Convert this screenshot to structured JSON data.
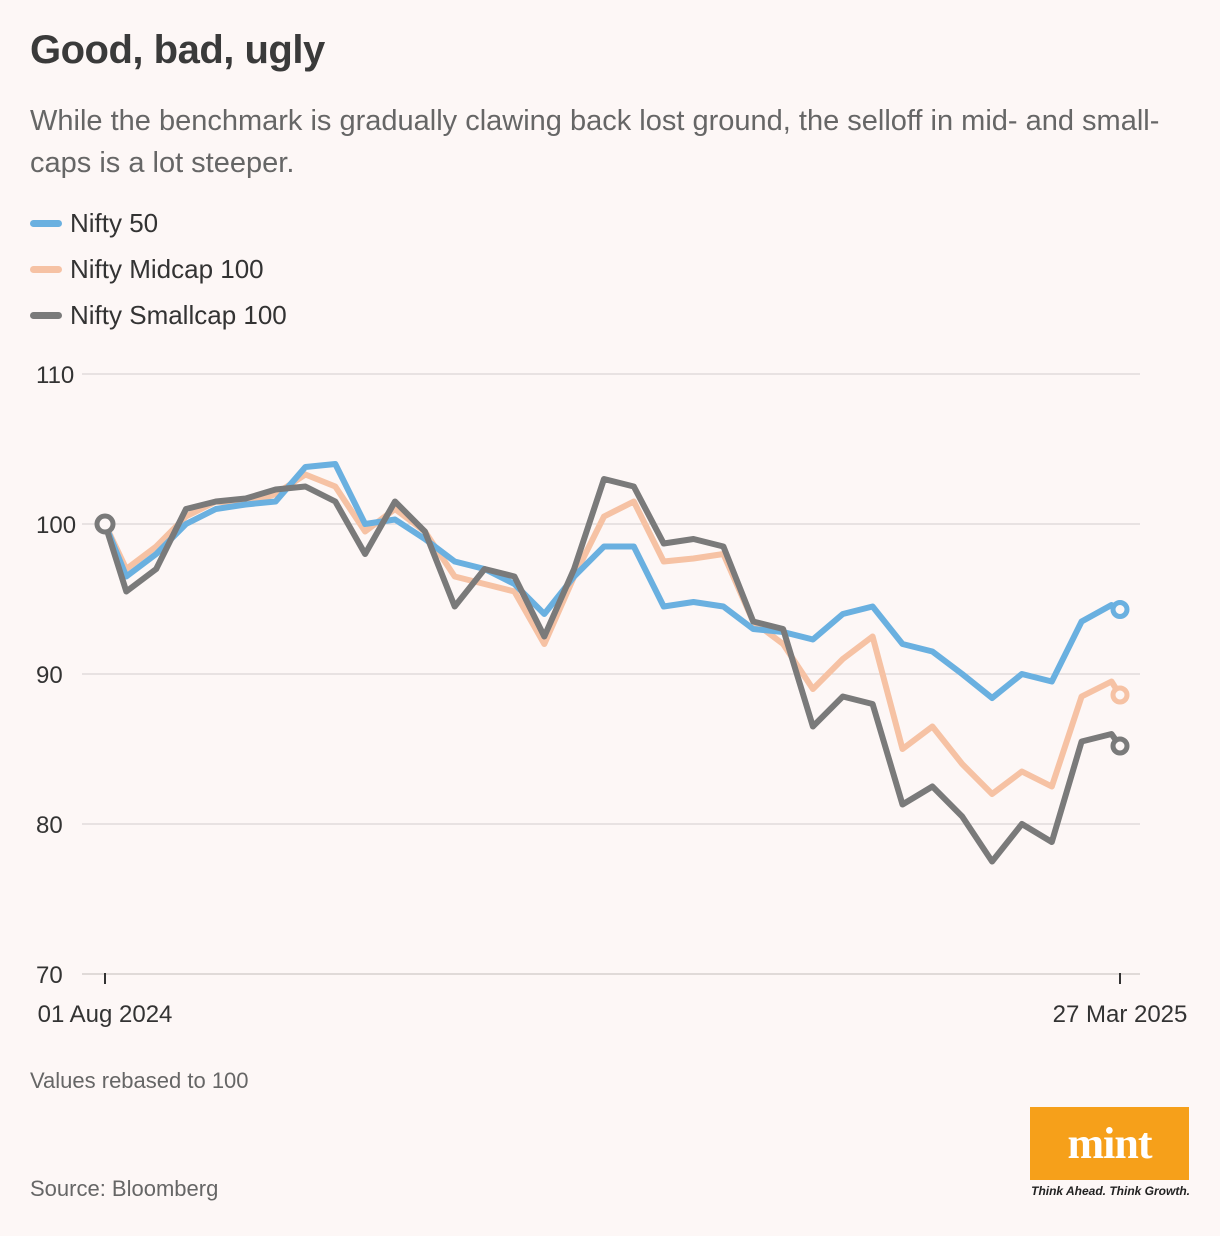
{
  "header": {
    "title": "Good, bad, ugly",
    "subtitle": "While the benchmark is gradually clawing back lost ground, the selloff in mid- and small-caps is a lot steeper."
  },
  "footer": {
    "note": "Values rebased to 100",
    "source": "Source: Bloomberg",
    "logo": "mint",
    "tagline": "Think Ahead. Think Growth."
  },
  "colors": {
    "background": "#fdf7f6",
    "nifty50": "#6ab0e0",
    "midcap": "#f6c2a4",
    "smallcap": "#7a7a7a",
    "brand": "#f6a01a"
  },
  "chart_data": {
    "type": "line",
    "title": "",
    "xlabel": "",
    "ylabel": "",
    "ylim": [
      70,
      110
    ],
    "yticks": [
      70,
      80,
      90,
      100,
      110
    ],
    "x_tick_labels": [
      "01 Aug 2024",
      "27 Mar 2025"
    ],
    "x_range": [
      "2024-08-01",
      "2025-03-27"
    ],
    "grid": true,
    "legend_position": "top-left",
    "x": [
      "2024-08-01",
      "2024-08-06",
      "2024-08-13",
      "2024-08-20",
      "2024-08-27",
      "2024-09-03",
      "2024-09-10",
      "2024-09-17",
      "2024-09-24",
      "2024-10-01",
      "2024-10-08",
      "2024-10-15",
      "2024-10-22",
      "2024-10-29",
      "2024-11-05",
      "2024-11-12",
      "2024-11-19",
      "2024-11-26",
      "2024-12-03",
      "2024-12-10",
      "2024-12-17",
      "2024-12-24",
      "2024-12-31",
      "2025-01-07",
      "2025-01-14",
      "2025-01-21",
      "2025-01-28",
      "2025-02-04",
      "2025-02-11",
      "2025-02-18",
      "2025-02-25",
      "2025-03-04",
      "2025-03-11",
      "2025-03-18",
      "2025-03-25",
      "2025-03-27"
    ],
    "series": [
      {
        "name": "Nifty 50",
        "values": [
          100.0,
          96.5,
          98.0,
          100.0,
          101.0,
          101.3,
          101.5,
          103.8,
          104.0,
          100.0,
          100.3,
          99.0,
          97.5,
          97.0,
          96.0,
          94.0,
          96.5,
          98.5,
          98.5,
          94.5,
          94.8,
          94.5,
          93.0,
          92.8,
          92.3,
          94.0,
          94.5,
          92.0,
          91.5,
          90.0,
          88.4,
          90.0,
          89.5,
          93.5,
          94.6,
          94.3
        ]
      },
      {
        "name": "Nifty Midcap 100",
        "values": [
          100.0,
          97.0,
          98.5,
          100.5,
          101.5,
          101.3,
          102.0,
          103.3,
          102.5,
          99.5,
          101.0,
          99.5,
          96.5,
          96.0,
          95.5,
          92.0,
          96.5,
          100.5,
          101.5,
          97.5,
          97.7,
          98.0,
          93.5,
          92.0,
          89.0,
          91.0,
          92.5,
          85.0,
          86.5,
          84.0,
          82.0,
          83.5,
          82.5,
          88.5,
          89.5,
          88.6
        ]
      },
      {
        "name": "Nifty Smallcap 100",
        "values": [
          100.0,
          95.5,
          97.0,
          101.0,
          101.5,
          101.7,
          102.3,
          102.5,
          101.5,
          98.0,
          101.5,
          99.5,
          94.5,
          97.0,
          96.5,
          92.5,
          97.0,
          103.0,
          102.5,
          98.7,
          99.0,
          98.5,
          93.5,
          93.0,
          86.5,
          88.5,
          88.0,
          81.3,
          82.5,
          80.5,
          77.5,
          80.0,
          78.8,
          85.5,
          86.0,
          85.2
        ]
      }
    ]
  }
}
